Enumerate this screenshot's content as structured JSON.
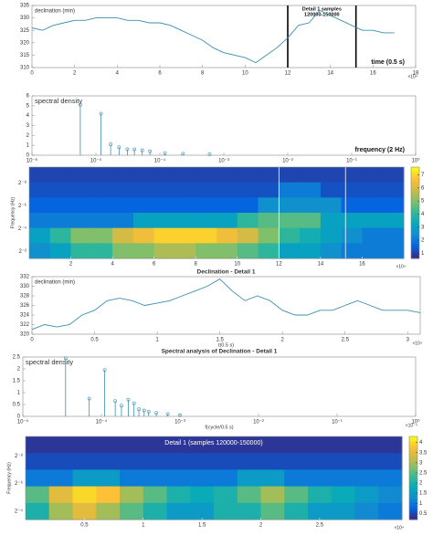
{
  "chart_data": [
    {
      "type": "line",
      "ylabel": "declination (min)",
      "xlabel": "time (0.5 s)",
      "x_exponent": "×10⁴",
      "annotation": [
        "Detail 1 samples",
        "120000-150000"
      ],
      "vlines": [
        12,
        15.2
      ],
      "color": "#3a8fb0",
      "x": [
        0,
        0.5,
        1,
        1.5,
        2,
        2.5,
        3,
        3.5,
        4,
        4.5,
        5,
        5.5,
        6,
        6.5,
        7,
        7.5,
        8,
        8.5,
        9,
        9.5,
        10,
        10.5,
        11,
        11.5,
        12,
        12.5,
        13,
        13.5,
        14,
        14.5,
        15,
        15.5,
        16,
        16.5,
        17
      ],
      "values": [
        326,
        325,
        327,
        328,
        329,
        329,
        330,
        330,
        330,
        329,
        329,
        328,
        328,
        327,
        325,
        323,
        321,
        318,
        316,
        315,
        314,
        312,
        315,
        318,
        322,
        327,
        328,
        333,
        331,
        329,
        327,
        325,
        325,
        324,
        324
      ],
      "xlim": [
        0,
        18
      ],
      "xticks": [
        0,
        2,
        4,
        6,
        8,
        10,
        12,
        14,
        16,
        18
      ],
      "ylim": [
        310,
        335
      ],
      "yticks": [
        310,
        315,
        320,
        325,
        330,
        335
      ]
    },
    {
      "type": "stem",
      "xscale": "log",
      "ylabel": "spectral density",
      "xlabel": "frequency (2 Hz)",
      "color": "#3a8fb0",
      "x": [
        5.7e-06,
        1.2e-05,
        1.7e-05,
        2.3e-05,
        3.1e-05,
        4e-05,
        5.3e-05,
        7e-05,
        0.00012,
        0.00023,
        0.0006
      ],
      "values": [
        5.1,
        4.2,
        1.1,
        0.8,
        0.6,
        0.6,
        0.5,
        0.4,
        0.2,
        0.15,
        0.1
      ],
      "xlim": [
        1e-06,
        1
      ],
      "xticks": [
        {
          "value": 1e-06,
          "label": "10⁻⁶"
        },
        {
          "value": 1e-05,
          "label": "10⁻⁵"
        },
        {
          "value": 0.0001,
          "label": "10⁻⁴"
        },
        {
          "value": 0.001,
          "label": "10⁻³"
        },
        {
          "value": 0.01,
          "label": "10⁻²"
        },
        {
          "value": 0.1,
          "label": "10⁻¹"
        },
        {
          "value": 1,
          "label": "10⁰"
        }
      ],
      "ylim": [
        0,
        6
      ],
      "yticks": [
        0,
        1,
        2,
        3,
        4,
        5,
        6
      ]
    },
    {
      "type": "heatmap",
      "ylabel": "Frequency (Hz)",
      "x_exponent": "×10⁴",
      "vlines": [
        12,
        15.2
      ],
      "ylabels": [
        "2⁻⁸",
        "2⁻⁶",
        "2⁻⁴",
        "2⁻²"
      ],
      "xlim": [
        0,
        18
      ],
      "xticks": [
        2,
        4,
        6,
        8,
        10,
        12,
        14,
        16
      ],
      "z": [
        [
          1,
          1,
          1,
          1,
          1,
          1,
          1,
          1,
          1,
          1,
          1,
          1,
          1,
          1,
          1,
          1,
          1,
          1
        ],
        [
          1.2,
          1.2,
          1.2,
          1.2,
          1.2,
          1.2,
          1.2,
          1.2,
          1.2,
          1.2,
          1.2,
          1.2,
          2,
          2,
          1.2,
          1.2,
          1.2,
          1.2
        ],
        [
          1.5,
          1.5,
          1.5,
          1.5,
          1.5,
          1.5,
          1.5,
          1.5,
          1.5,
          1.5,
          1.5,
          2.5,
          2.5,
          2.5,
          2.5,
          1.5,
          1.5,
          1.5
        ],
        [
          2,
          2,
          2,
          2,
          2,
          3,
          3,
          3,
          3,
          3,
          4,
          4.5,
          4.5,
          4.5,
          3,
          3,
          3,
          3
        ],
        [
          3,
          4,
          5,
          5,
          6,
          6.5,
          7,
          7,
          7,
          6.5,
          6,
          5,
          4,
          3.5,
          3,
          2.5,
          2,
          2
        ],
        [
          2.5,
          3,
          4,
          4,
          5,
          5,
          5.5,
          5.5,
          5,
          5,
          4.5,
          4,
          3,
          3,
          2.5,
          2,
          2,
          2
        ]
      ],
      "clim": [
        0.6,
        7.6
      ],
      "cticks": [
        1,
        2,
        3,
        4,
        5,
        6,
        7
      ]
    },
    {
      "type": "line",
      "title": "Declination - Detail 1",
      "ylabel": "declination (min)",
      "xlabel": "t(0.5 s)",
      "x_exponent": "×10⁴",
      "color": "#3a8fb0",
      "x": [
        0,
        0.1,
        0.2,
        0.3,
        0.4,
        0.5,
        0.6,
        0.7,
        0.8,
        0.9,
        1,
        1.1,
        1.2,
        1.3,
        1.4,
        1.5,
        1.6,
        1.7,
        1.8,
        1.9,
        2,
        2.1,
        2.2,
        2.3,
        2.4,
        2.5,
        2.6,
        2.7,
        2.8,
        2.9,
        3,
        3.1
      ],
      "values": [
        321,
        322,
        321.5,
        322,
        324,
        325,
        327,
        327.5,
        327,
        326,
        326.5,
        327,
        328,
        329,
        330,
        331.5,
        329,
        327,
        328,
        327,
        325,
        324,
        324,
        325,
        325,
        326,
        327,
        326,
        325,
        325,
        325,
        324.5
      ],
      "xlim": [
        0,
        3.1
      ],
      "xticks": [
        0,
        0.5,
        1,
        1.5,
        2,
        2.5,
        3
      ],
      "ylim": [
        320,
        332
      ],
      "yticks": [
        320,
        322,
        324,
        326,
        328,
        330,
        332
      ]
    },
    {
      "type": "stem",
      "xscale": "log",
      "title": "Spectral analysis of Declination - Detail 1",
      "ylabel": "spectral density",
      "xlabel": "f(cycle/0.5 s)",
      "x_exponent": "×10⁻⁴",
      "color": "#3a8fb0",
      "x": [
        3.5e-05,
        7e-05,
        0.00011,
        0.00015,
        0.00018,
        0.00022,
        0.00026,
        0.0003,
        0.00035,
        0.0004,
        0.0005,
        0.0007,
        0.001
      ],
      "values": [
        2.45,
        0.75,
        1.95,
        0.65,
        0.45,
        0.7,
        0.55,
        0.3,
        0.25,
        0.2,
        0.15,
        0.1,
        0.05
      ],
      "xlim": [
        1e-05,
        1
      ],
      "xticks": [
        {
          "value": 1e-05,
          "label": "10⁻⁵"
        },
        {
          "value": 0.0001,
          "label": "10⁻⁴"
        },
        {
          "value": 0.001,
          "label": "10⁻³"
        },
        {
          "value": 0.01,
          "label": "10⁻²"
        },
        {
          "value": 0.1,
          "label": "10⁻¹"
        },
        {
          "value": 1,
          "label": "10⁰"
        }
      ],
      "ylim": [
        0,
        2.5
      ],
      "yticks": [
        0,
        0.5,
        1,
        1.5,
        2,
        2.5
      ]
    },
    {
      "type": "heatmap",
      "title": "Detail 1 (samples 120000-150000)",
      "ylabel": "Frequency (Hz)",
      "x_exponent": "×10⁴",
      "ylabels": [
        "2⁻⁸",
        "2⁻⁶",
        "2⁻⁴"
      ],
      "xlim": [
        0,
        3.2
      ],
      "xticks": [
        0.5,
        1,
        1.5,
        2,
        2.5
      ],
      "z": [
        [
          0.3,
          0.3,
          0.3,
          0.3,
          0.3,
          0.3,
          0.3,
          0.3,
          0.3,
          0.3,
          0.3,
          0.3,
          0.3,
          0.3,
          0.3,
          0.3
        ],
        [
          0.5,
          0.5,
          0.5,
          0.5,
          0.5,
          0.5,
          0.5,
          0.5,
          0.5,
          0.5,
          0.5,
          0.5,
          0.5,
          0.5,
          0.5,
          0.5
        ],
        [
          1,
          1,
          1.5,
          1.5,
          1,
          1,
          1,
          1,
          1,
          1.5,
          1.5,
          1,
          1,
          1,
          1,
          1
        ],
        [
          2.5,
          3.5,
          4,
          3.8,
          3,
          2.5,
          2,
          1.8,
          2,
          2.5,
          3,
          2.5,
          2,
          1.8,
          1.5,
          1.2
        ],
        [
          2,
          3,
          3.5,
          3,
          2.5,
          2,
          1.5,
          1.5,
          2,
          2,
          2.5,
          2,
          1.5,
          1.5,
          1.2,
          1
        ]
      ],
      "clim": [
        0.2,
        4.3
      ],
      "cticks": [
        0.5,
        1,
        1.5,
        2,
        2.5,
        3,
        3.5,
        4
      ]
    }
  ]
}
